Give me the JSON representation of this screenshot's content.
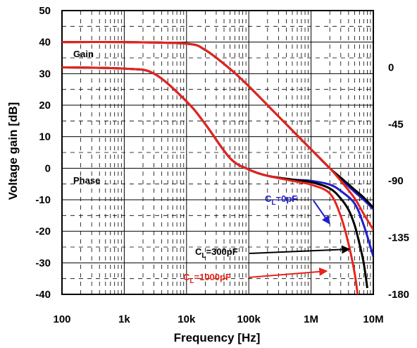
{
  "chart_data": {
    "type": "line",
    "xlabel": "Frequency [Hz]",
    "ylabel": "Voltage gain [dB]",
    "x_scale": "log",
    "xlim": [
      100,
      10000000
    ],
    "ylim": [
      -40,
      50
    ],
    "y2lim": [
      -180,
      45
    ],
    "grid": true,
    "x_ticks": [
      "100",
      "1k",
      "10k",
      "100k",
      "1M",
      "10M"
    ],
    "y_ticks": [
      "50",
      "40",
      "30",
      "20",
      "10",
      "0",
      "-10",
      "-20",
      "-30",
      "-40"
    ],
    "y2_ticks": [
      "0",
      "-45",
      "-90",
      "-135",
      "-180"
    ],
    "colors": {
      "cl0": "#1f1fd0",
      "cl300": "#000000",
      "cl1000": "#e8231b"
    },
    "labels": {
      "gain": "Gain",
      "phase": "Phase"
    },
    "annotations": [
      {
        "base": "C",
        "sub": "L",
        "rest": "=0pF",
        "series": "cl0"
      },
      {
        "base": "C",
        "sub": "L",
        "rest": "=300pF",
        "series": "cl300"
      },
      {
        "base": "C",
        "sub": "L",
        "rest": "=1000pF",
        "series": "cl1000"
      }
    ],
    "series": [
      {
        "id": "gain_cl0",
        "color_key": "cl0",
        "axis": "left",
        "x": [
          100,
          1000,
          10000,
          20000,
          50000,
          100000,
          200000,
          500000,
          1000000,
          2000000,
          3000000,
          5000000,
          7000000,
          10000000
        ],
        "y": [
          40,
          40,
          39.5,
          37.5,
          31.5,
          26.0,
          20.0,
          12.0,
          6.0,
          0.0,
          -3.5,
          -7.5,
          -10.0,
          -13.0
        ]
      },
      {
        "id": "gain_cl300",
        "color_key": "cl300",
        "axis": "left",
        "x": [
          100,
          1000,
          10000,
          20000,
          50000,
          100000,
          200000,
          500000,
          1000000,
          2000000,
          3000000,
          5000000,
          7000000,
          10000000
        ],
        "y": [
          40,
          40,
          39.5,
          37.5,
          31.5,
          26.0,
          20.0,
          12.0,
          6.0,
          0.0,
          -3.0,
          -6.8,
          -9.3,
          -12.5
        ]
      },
      {
        "id": "gain_cl1000",
        "color_key": "cl1000",
        "axis": "left",
        "x": [
          100,
          1000,
          10000,
          20000,
          50000,
          100000,
          200000,
          500000,
          1000000,
          2000000,
          3000000,
          5000000,
          7000000,
          10000000
        ],
        "y": [
          40,
          40,
          39.5,
          37.5,
          31.5,
          26.0,
          20.0,
          12.0,
          6.0,
          0.0,
          -4.0,
          -9.5,
          -14.5,
          -19.5
        ]
      },
      {
        "id": "phase_cl0",
        "color_key": "cl0",
        "axis": "right",
        "x": [
          100,
          1000,
          3000,
          10000,
          20000,
          50000,
          100000,
          200000,
          500000,
          1000000,
          2000000,
          3000000,
          5000000,
          7000000,
          10000000
        ],
        "y": [
          0,
          -1,
          -5,
          -27,
          -45,
          -72,
          -81,
          -86,
          -89,
          -90,
          -93,
          -98,
          -108,
          -125,
          -150
        ]
      },
      {
        "id": "phase_cl300",
        "color_key": "cl300",
        "axis": "right",
        "x": [
          100,
          1000,
          3000,
          10000,
          20000,
          50000,
          100000,
          200000,
          500000,
          1000000,
          2000000,
          3000000,
          4000000,
          5000000,
          6000000,
          7000000,
          8000000
        ],
        "y": [
          0,
          -1,
          -5,
          -27,
          -45,
          -72,
          -81,
          -86,
          -89,
          -91,
          -96,
          -104,
          -113,
          -125,
          -140,
          -155,
          -175
        ]
      },
      {
        "id": "phase_cl1000",
        "color_key": "cl1000",
        "axis": "right",
        "x": [
          100,
          1000,
          3000,
          10000,
          20000,
          50000,
          100000,
          200000,
          500000,
          1000000,
          2000000,
          3000000,
          4000000,
          5000000,
          5600000
        ],
        "y": [
          0,
          -1,
          -5,
          -27,
          -45,
          -72,
          -81,
          -86,
          -90,
          -93,
          -100,
          -118,
          -140,
          -163,
          -180
        ]
      }
    ]
  }
}
